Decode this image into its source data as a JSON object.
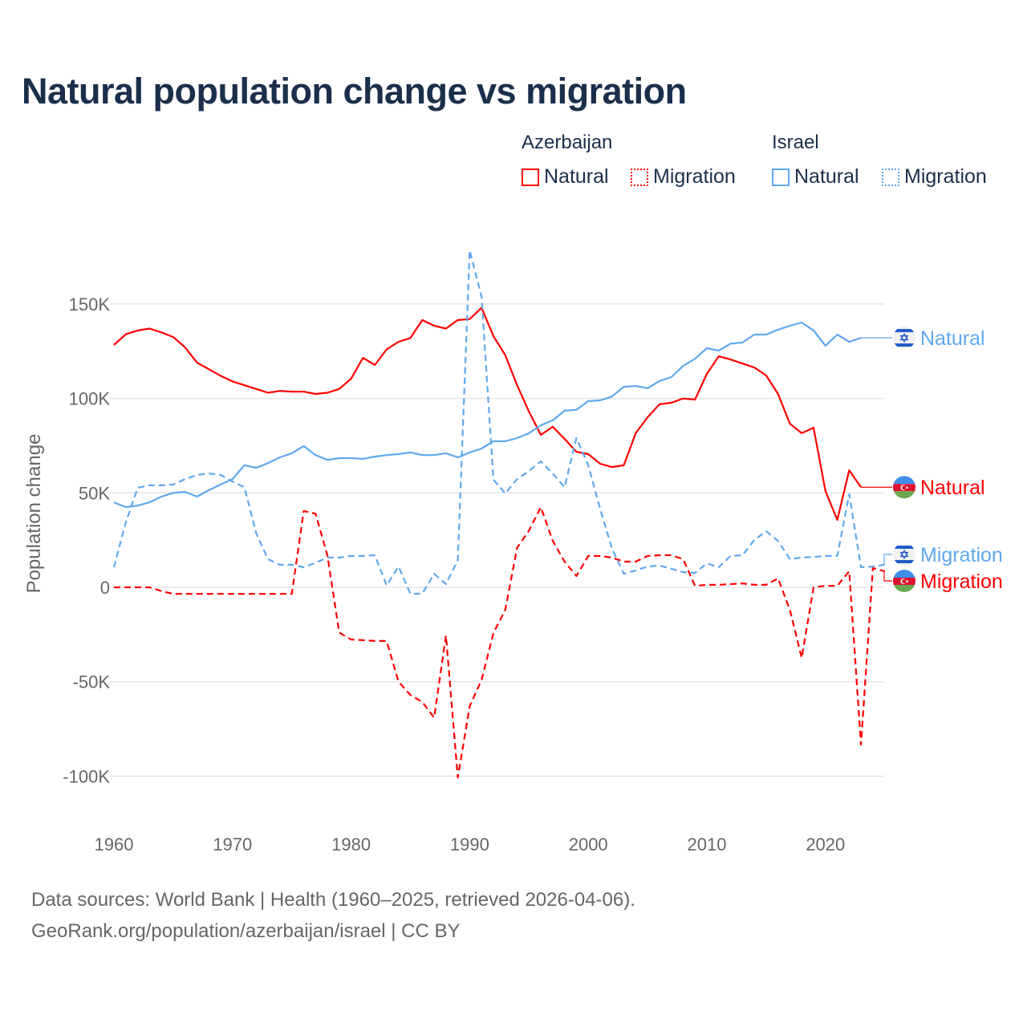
{
  "title": "Natural population change vs migration",
  "legend": {
    "groups": [
      {
        "name": "Azerbaijan",
        "color": "#ff0000",
        "items": [
          "Natural",
          "Migration"
        ]
      },
      {
        "name": "Israel",
        "color": "#5fa8ee",
        "items": [
          "Natural",
          "Migration"
        ]
      }
    ]
  },
  "footer": {
    "line1": "Data sources: World Bank | Health (1960–2025, retrieved 2026-04-06).",
    "line2": "GeoRank.org/population/azerbaijan/israel | CC BY"
  },
  "chart_data": {
    "type": "line",
    "title": "Natural population change vs migration",
    "xlabel": "",
    "ylabel": "Population change",
    "xlim": [
      1960,
      2025
    ],
    "ylim": [
      -100000,
      150000
    ],
    "x_ticks": [
      1960,
      1970,
      1980,
      1990,
      2000,
      2010,
      2020
    ],
    "x_tick_labels": [
      "1960",
      "1970",
      "1980",
      "1990",
      "2000",
      "2010",
      "2020"
    ],
    "y_ticks": [
      -100000,
      -50000,
      0,
      50000,
      100000,
      150000
    ],
    "y_tick_labels": [
      "-100K",
      "-50K",
      "0",
      "50K",
      "100K",
      "150K"
    ],
    "grid": true,
    "legend_position": "top-right",
    "series": [
      {
        "name": "Azerbaijan Natural",
        "country": "Azerbaijan",
        "kind": "Natural",
        "color": "#ff0000",
        "dash": false,
        "start_year": 1960,
        "end_label": "Natural",
        "flag": "azerbaijan-flag",
        "values": [
          128300,
          134000,
          136000,
          137000,
          135000,
          132500,
          127000,
          119000,
          115500,
          112000,
          109000,
          107000,
          105000,
          103000,
          104000,
          103600,
          103600,
          102400,
          103000,
          105000,
          110500,
          121500,
          117700,
          126000,
          130000,
          132000,
          141500,
          138500,
          137000,
          141500,
          142000,
          148000,
          133000,
          123000,
          107000,
          93000,
          80700,
          85000,
          78600,
          71800,
          70500,
          65400,
          63700,
          64600,
          81600,
          90000,
          96900,
          97700,
          100000,
          99400,
          113000,
          122300,
          120600,
          118500,
          116400,
          112200,
          102400,
          86600,
          81600,
          84500,
          51000,
          35700,
          62000,
          53000
        ]
      },
      {
        "name": "Azerbaijan Migration",
        "country": "Azerbaijan",
        "kind": "Migration",
        "color": "#ff0000",
        "dash": true,
        "start_year": 1960,
        "end_label": "Migration",
        "flag": "azerbaijan-flag",
        "values": [
          0,
          0,
          0,
          0,
          -2000,
          -3500,
          -3500,
          -3500,
          -3500,
          -3500,
          -3500,
          -3500,
          -3500,
          -3500,
          -3500,
          -3500,
          40400,
          39000,
          17000,
          -24000,
          -27600,
          -28000,
          -28400,
          -28400,
          -50000,
          -57000,
          -60700,
          -69000,
          -25500,
          -100700,
          -63000,
          -49000,
          -24200,
          -12000,
          21000,
          30000,
          42500,
          24600,
          13600,
          6000,
          16600,
          16600,
          15700,
          13600,
          13600,
          16600,
          17000,
          17000,
          14900,
          800,
          1300,
          1300,
          1700,
          2100,
          1300,
          1300,
          4700,
          -12000,
          -37400,
          0,
          800,
          800,
          8500,
          -83300,
          10200,
          8500
        ]
      },
      {
        "name": "Israel Natural",
        "country": "Israel",
        "kind": "Natural",
        "color": "#5fa8ee",
        "dash": false,
        "start_year": 1960,
        "end_label": "Natural",
        "flag": "israel-flag",
        "values": [
          45000,
          42500,
          43300,
          45000,
          48000,
          50000,
          50500,
          48000,
          51400,
          54400,
          57300,
          64600,
          63300,
          65800,
          68800,
          71000,
          74800,
          70000,
          67500,
          68400,
          68400,
          68000,
          69200,
          70000,
          70500,
          71400,
          70000,
          70000,
          71000,
          68800,
          71400,
          73500,
          77300,
          77300,
          79000,
          81600,
          85800,
          88400,
          93500,
          94000,
          98600,
          99000,
          101000,
          106200,
          106600,
          105400,
          109200,
          111300,
          117200,
          121000,
          126600,
          125300,
          129000,
          129600,
          133800,
          133800,
          136400,
          138500,
          140200,
          136000,
          127900,
          133800,
          130000,
          132100
        ]
      },
      {
        "name": "Israel Migration",
        "country": "Israel",
        "kind": "Migration",
        "color": "#5fa8ee",
        "dash": true,
        "start_year": 1960,
        "end_label": "Migration",
        "flag": "israel-flag",
        "values": [
          10600,
          34400,
          52700,
          54000,
          54000,
          54400,
          57300,
          59500,
          60300,
          59500,
          56000,
          53000,
          28500,
          14900,
          11900,
          12000,
          10600,
          13000,
          15700,
          15700,
          16600,
          16600,
          17000,
          1000,
          11000,
          -3400,
          -3400,
          7200,
          1700,
          14400,
          178400,
          153800,
          57000,
          49700,
          57300,
          61600,
          66700,
          60300,
          53000,
          79000,
          64600,
          41600,
          20400,
          7200,
          8900,
          11000,
          11500,
          9800,
          8000,
          7600,
          12700,
          10600,
          16600,
          17000,
          25000,
          29700,
          24600,
          14900,
          15700,
          16100,
          16600,
          16600,
          49300,
          10600,
          11000,
          12000
        ]
      }
    ]
  }
}
